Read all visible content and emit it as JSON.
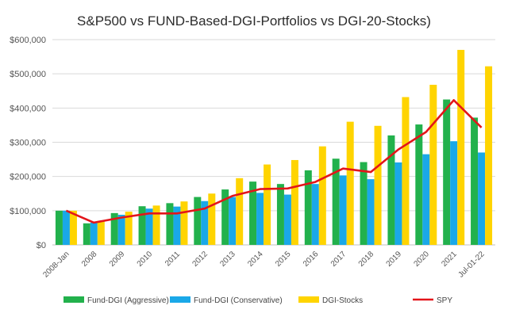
{
  "chart_data": {
    "type": "bar",
    "title": "S&P500  vs  FUND-Based-DGI-Portfolios vs DGI-20-Stocks)",
    "xlabel": "",
    "ylabel": "",
    "ylim": [
      0,
      600000
    ],
    "yticks": [
      0,
      100000,
      200000,
      300000,
      400000,
      500000,
      600000
    ],
    "ytick_labels": [
      "$0",
      "$100,000",
      "$200,000",
      "$300,000",
      "$400,000",
      "$500,000",
      "$600,000"
    ],
    "grid": true,
    "legend_position": "bottom",
    "categories": [
      "2008-Jan",
      "2008",
      "2009",
      "2010",
      "2011",
      "2012",
      "2013",
      "2014",
      "2015",
      "2016",
      "2017",
      "2018",
      "2019",
      "2020",
      "2021",
      "Jul-01-22"
    ],
    "series": [
      {
        "name": "Fund-DGI (Aggressive)",
        "type": "bar",
        "color": "#22b14c",
        "values": [
          100000,
          63000,
          93000,
          113000,
          122000,
          140000,
          162000,
          185000,
          178000,
          218000,
          252000,
          242000,
          320000,
          352000,
          425000,
          372000
        ]
      },
      {
        "name": "Fund-DGI (Conservative)",
        "type": "bar",
        "color": "#1aa8e8",
        "values": [
          100000,
          65000,
          88000,
          106000,
          112000,
          128000,
          140000,
          152000,
          147000,
          178000,
          203000,
          192000,
          241000,
          265000,
          303000,
          270000
        ]
      },
      {
        "name": "DGI-Stocks",
        "type": "bar",
        "color": "#ffd400",
        "values": [
          100000,
          70000,
          97000,
          115000,
          127000,
          150000,
          195000,
          235000,
          248000,
          288000,
          360000,
          348000,
          432000,
          468000,
          570000,
          522000
        ]
      },
      {
        "name": "SPY",
        "type": "line",
        "color": "#e3151a",
        "values": [
          100000,
          65000,
          80000,
          92000,
          92000,
          106000,
          143000,
          163000,
          165000,
          184000,
          223000,
          213000,
          279000,
          330000,
          423000,
          343000
        ]
      }
    ]
  }
}
